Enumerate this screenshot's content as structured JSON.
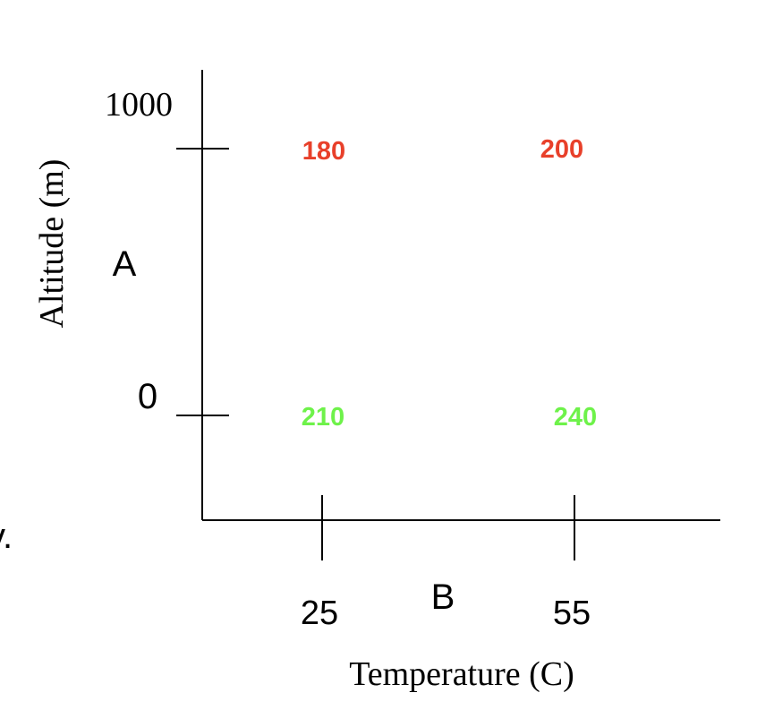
{
  "diagram": {
    "y_axis": {
      "label": "Altitude (m)",
      "factor_label": "A",
      "top_tick_label": "1000",
      "bottom_tick_label": "0"
    },
    "x_axis": {
      "label": "Temperature (C)",
      "factor_label": "B",
      "left_tick_label": "25",
      "right_tick_label": "55"
    },
    "cells": {
      "top_left": "180",
      "top_right": "200",
      "bottom_left": "210",
      "bottom_right": "240"
    },
    "stray_mark": "v.",
    "colors": {
      "high_altitude": "#e8402a",
      "low_altitude": "#6ef24a",
      "axis": "#000000"
    }
  }
}
